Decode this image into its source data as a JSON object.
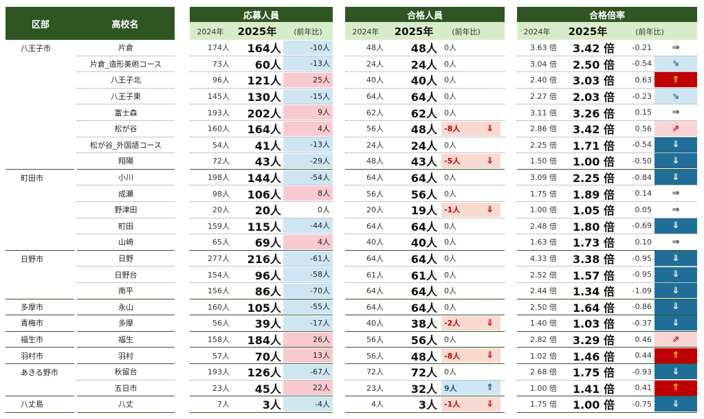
{
  "headers": {
    "district": "区部",
    "school": "高校名",
    "applicants": "応募人員",
    "passers": "合格人員",
    "ratio": "合格倍率",
    "y2024": "2024年",
    "y2025": "2025年",
    "yoy": "(前年比)"
  },
  "colors": {
    "header_bg": "#2e5522",
    "sub_bg": "#d9ecc9",
    "pos_bg": "#f9c9d0",
    "neg_bg": "#cde6f2",
    "pass_neg_bg": "#f9dad3",
    "up_red": "#c00000",
    "down_blue": "#1f6f99",
    "mild_up_bg": "#f9d5d5"
  },
  "rows": [
    {
      "district": "八王子市",
      "school": "片倉",
      "app24": "174人",
      "app25": "164人",
      "appd": "-10人",
      "pass24": "48人",
      "pass25": "48人",
      "passd": "0人",
      "r24": "3.63 倍",
      "r25": "3.42 倍",
      "rd": "-0.21",
      "arrow": "⇒",
      "astyle": "flat"
    },
    {
      "district": "",
      "school": "片倉_造形美術コース",
      "app24": "73人",
      "app25": "60人",
      "appd": "-13人",
      "pass24": "24人",
      "pass25": "24人",
      "passd": "0人",
      "r24": "3.04 倍",
      "r25": "2.50 倍",
      "rd": "-0.54",
      "arrow": "⇘",
      "astyle": "lightdown"
    },
    {
      "district": "",
      "school": "八王子北",
      "app24": "96人",
      "app25": "121人",
      "appd": "25人",
      "pass24": "40人",
      "pass25": "40人",
      "passd": "0人",
      "r24": "2.40 倍",
      "r25": "3.03 倍",
      "rd": "0.63",
      "arrow": "⇑",
      "astyle": "up"
    },
    {
      "district": "",
      "school": "八王子東",
      "app24": "145人",
      "app25": "130人",
      "appd": "-15人",
      "pass24": "64人",
      "pass25": "64人",
      "passd": "0人",
      "r24": "2.27 倍",
      "r25": "2.03 倍",
      "rd": "-0.23",
      "arrow": "⇘",
      "astyle": "lightdown"
    },
    {
      "district": "",
      "school": "富士森",
      "app24": "193人",
      "app25": "202人",
      "appd": "9人",
      "pass24": "62人",
      "pass25": "62人",
      "passd": "0人",
      "r24": "3.11 倍",
      "r25": "3.26 倍",
      "rd": "0.15",
      "arrow": "⇒",
      "astyle": "flat"
    },
    {
      "district": "",
      "school": "松が谷",
      "app24": "160人",
      "app25": "164人",
      "appd": "4人",
      "pass24": "56人",
      "pass25": "48人",
      "passd": "-8人",
      "pass_arrow": "⇓",
      "r24": "2.86 倍",
      "r25": "3.42 倍",
      "rd": "0.56",
      "arrow": "⇗",
      "astyle": "lightup"
    },
    {
      "district": "",
      "school": "松が谷_外国語コース",
      "app24": "54人",
      "app25": "41人",
      "appd": "-13人",
      "pass24": "24人",
      "pass25": "24人",
      "passd": "0人",
      "r24": "2.25 倍",
      "r25": "1.71 倍",
      "rd": "-0.54",
      "arrow": "⇓",
      "astyle": "down"
    },
    {
      "district": "",
      "school": "翔陽",
      "app24": "72人",
      "app25": "43人",
      "appd": "-29人",
      "pass24": "48人",
      "pass25": "43人",
      "passd": "-5人",
      "pass_arrow": "⇓",
      "r24": "1.50 倍",
      "r25": "1.00 倍",
      "rd": "-0.50",
      "arrow": "⇓",
      "astyle": "down"
    },
    {
      "district": "町田市",
      "school": "小川",
      "app24": "198人",
      "app25": "144人",
      "appd": "-54人",
      "pass24": "64人",
      "pass25": "64人",
      "passd": "0人",
      "r24": "3.09 倍",
      "r25": "2.25 倍",
      "rd": "-0.84",
      "arrow": "⇓",
      "astyle": "down"
    },
    {
      "district": "",
      "school": "成瀬",
      "app24": "98人",
      "app25": "106人",
      "appd": "8人",
      "pass24": "56人",
      "pass25": "56人",
      "passd": "0人",
      "r24": "1.75 倍",
      "r25": "1.89 倍",
      "rd": "0.14",
      "arrow": "⇒",
      "astyle": "flat"
    },
    {
      "district": "",
      "school": "野津田",
      "app24": "20人",
      "app25": "20人",
      "appd": "0人",
      "pass24": "20人",
      "pass25": "19人",
      "passd": "-1人",
      "pass_arrow": "⇓",
      "r24": "1.00 倍",
      "r25": "1.05 倍",
      "rd": "0.05",
      "arrow": "⇒",
      "astyle": "flat"
    },
    {
      "district": "",
      "school": "町田",
      "app24": "159人",
      "app25": "115人",
      "appd": "-44人",
      "pass24": "64人",
      "pass25": "64人",
      "passd": "0人",
      "r24": "2.48 倍",
      "r25": "1.80 倍",
      "rd": "-0.69",
      "arrow": "⇓",
      "astyle": "down"
    },
    {
      "district": "",
      "school": "山崎",
      "app24": "65人",
      "app25": "69人",
      "appd": "4人",
      "pass24": "40人",
      "pass25": "40人",
      "passd": "0人",
      "r24": "1.63 倍",
      "r25": "1.73 倍",
      "rd": "0.10",
      "arrow": "⇒",
      "astyle": "flat"
    },
    {
      "district": "日野市",
      "school": "日野",
      "app24": "277人",
      "app25": "216人",
      "appd": "-61人",
      "pass24": "64人",
      "pass25": "64人",
      "passd": "0人",
      "r24": "4.33 倍",
      "r25": "3.38 倍",
      "rd": "-0.95",
      "arrow": "⇓",
      "astyle": "down"
    },
    {
      "district": "",
      "school": "日野台",
      "app24": "154人",
      "app25": "96人",
      "appd": "-58人",
      "pass24": "61人",
      "pass25": "61人",
      "passd": "0人",
      "r24": "2.52 倍",
      "r25": "1.57 倍",
      "rd": "-0.95",
      "arrow": "⇓",
      "astyle": "down"
    },
    {
      "district": "",
      "school": "南平",
      "app24": "156人",
      "app25": "86人",
      "appd": "-70人",
      "pass24": "64人",
      "pass25": "64人",
      "passd": "0人",
      "r24": "2.44 倍",
      "r25": "1.34 倍",
      "rd": "-1.09",
      "arrow": "⇓",
      "astyle": "down"
    },
    {
      "district": "多摩市",
      "school": "永山",
      "app24": "160人",
      "app25": "105人",
      "appd": "-55人",
      "pass24": "64人",
      "pass25": "64人",
      "passd": "0人",
      "r24": "2.50 倍",
      "r25": "1.64 倍",
      "rd": "-0.86",
      "arrow": "⇓",
      "astyle": "down"
    },
    {
      "district": "青梅市",
      "school": "多摩",
      "app24": "56人",
      "app25": "39人",
      "appd": "-17人",
      "pass24": "40人",
      "pass25": "38人",
      "passd": "-2人",
      "pass_arrow": "⇓",
      "r24": "1.40 倍",
      "r25": "1.03 倍",
      "rd": "-0.37",
      "arrow": "⇓",
      "astyle": "down"
    },
    {
      "district": "福生市",
      "school": "福生",
      "app24": "158人",
      "app25": "184人",
      "appd": "26人",
      "pass24": "56人",
      "pass25": "56人",
      "passd": "0人",
      "r24": "2.82 倍",
      "r25": "3.29 倍",
      "rd": "0.46",
      "arrow": "⇗",
      "astyle": "lightup"
    },
    {
      "district": "羽村市",
      "school": "羽村",
      "app24": "57人",
      "app25": "70人",
      "appd": "13人",
      "pass24": "56人",
      "pass25": "48人",
      "passd": "-8人",
      "pass_arrow": "⇓",
      "r24": "1.02 倍",
      "r25": "1.46 倍",
      "rd": "0.44",
      "arrow": "⇑",
      "astyle": "up"
    },
    {
      "district": "あきる野市",
      "school": "秋留台",
      "app24": "193人",
      "app25": "126人",
      "appd": "-67人",
      "pass24": "72人",
      "pass25": "72人",
      "passd": "0人",
      "r24": "2.68 倍",
      "r25": "1.75 倍",
      "rd": "-0.93",
      "arrow": "⇓",
      "astyle": "down"
    },
    {
      "district": "",
      "school": "五日市",
      "app24": "23人",
      "app25": "45人",
      "appd": "22人",
      "pass24": "23人",
      "pass25": "32人",
      "passd": "9人",
      "pass_arrow": "⇑",
      "r24": "1.00 倍",
      "r25": "1.41 倍",
      "rd": "0.41",
      "arrow": "⇑",
      "astyle": "up"
    },
    {
      "district": "八丈島",
      "school": "八丈",
      "app24": "7人",
      "app25": "3人",
      "appd": "-4人",
      "pass24": "4人",
      "pass25": "3人",
      "passd": "-1人",
      "pass_arrow": "⇓",
      "r24": "1.75 倍",
      "r25": "1.00 倍",
      "rd": "-0.75",
      "arrow": "⇓",
      "astyle": "down"
    }
  ]
}
